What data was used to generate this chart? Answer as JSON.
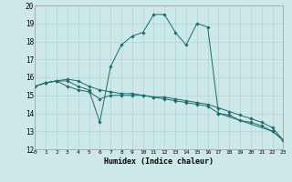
{
  "xlabel": "Humidex (Indice chaleur)",
  "xlim": [
    0,
    23
  ],
  "ylim": [
    12,
    20
  ],
  "yticks": [
    12,
    13,
    14,
    15,
    16,
    17,
    18,
    19,
    20
  ],
  "xticks": [
    0,
    1,
    2,
    3,
    4,
    5,
    6,
    7,
    8,
    9,
    10,
    11,
    12,
    13,
    14,
    15,
    16,
    17,
    18,
    19,
    20,
    21,
    22,
    23
  ],
  "background_color": "#cce8e8",
  "grid_color": "#b0d4d4",
  "line_color": "#1e6b6b",
  "line1_x": [
    0,
    1,
    2,
    3,
    4,
    5,
    6,
    7,
    8,
    9,
    10,
    11,
    12,
    13,
    14,
    15,
    16,
    17,
    22,
    23
  ],
  "line1_y": [
    15.5,
    15.7,
    15.8,
    15.8,
    15.5,
    15.3,
    13.5,
    16.6,
    17.8,
    18.3,
    18.5,
    19.5,
    19.5,
    18.5,
    17.8,
    19.0,
    18.8,
    14.0,
    13.0,
    12.5
  ],
  "line2_x": [
    0,
    1,
    2,
    3,
    4,
    5,
    6,
    7,
    8,
    9,
    10,
    11,
    12,
    13,
    14,
    15,
    16,
    17,
    18,
    19,
    20,
    21,
    22,
    23
  ],
  "line2_y": [
    15.5,
    15.7,
    15.8,
    15.5,
    15.3,
    15.2,
    14.8,
    15.0,
    15.0,
    15.0,
    15.0,
    14.9,
    14.8,
    14.7,
    14.6,
    14.5,
    14.4,
    14.0,
    13.9,
    13.6,
    13.5,
    13.3,
    13.0,
    12.5
  ],
  "line3_x": [
    0,
    1,
    2,
    3,
    4,
    5,
    6,
    7,
    8,
    9,
    10,
    11,
    12,
    13,
    14,
    15,
    16,
    17,
    18,
    19,
    20,
    21,
    22,
    23
  ],
  "line3_y": [
    15.5,
    15.7,
    15.8,
    15.9,
    15.8,
    15.5,
    15.3,
    15.2,
    15.1,
    15.1,
    15.0,
    14.9,
    14.9,
    14.8,
    14.7,
    14.6,
    14.5,
    14.3,
    14.1,
    13.9,
    13.7,
    13.5,
    13.2,
    12.5
  ]
}
